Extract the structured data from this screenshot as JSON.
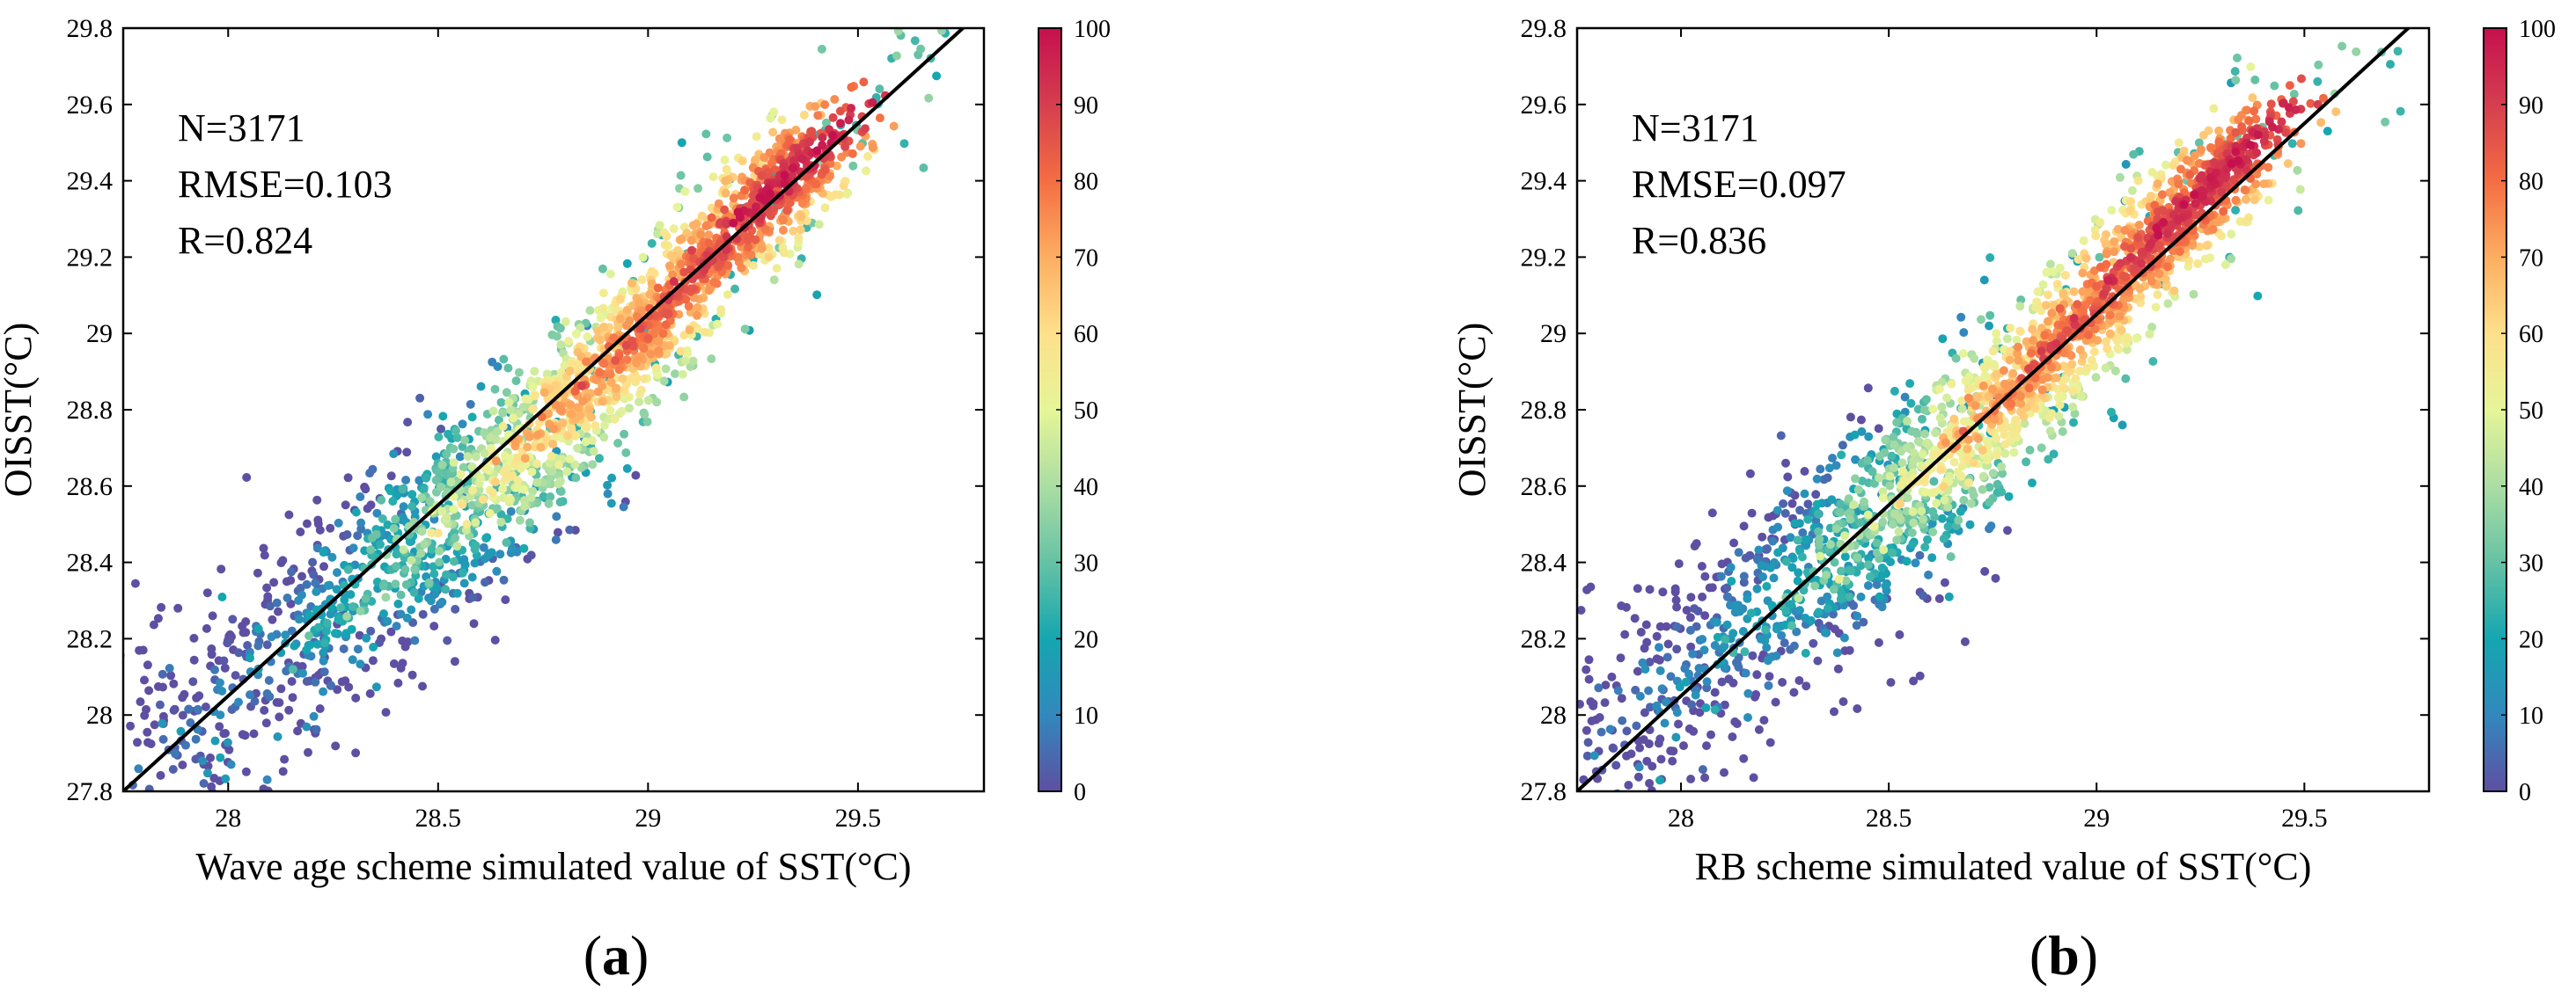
{
  "chart_data": [
    {
      "type": "scatter",
      "panel_label": "a",
      "xlabel": "Wave age scheme simulated value of SST(°C)",
      "ylabel": "OISST(°C)",
      "xlim": [
        27.75,
        29.8
      ],
      "ylim": [
        27.8,
        29.8
      ],
      "xticks": [
        28,
        28.5,
        29,
        29.5
      ],
      "xtick_labels": [
        "28",
        "28.5",
        "29",
        "29.5"
      ],
      "yticks": [
        27.8,
        28,
        28.2,
        28.4,
        28.6,
        28.8,
        29,
        29.2,
        29.4,
        29.6,
        29.8
      ],
      "ytick_labels": [
        "27.8",
        "28",
        "28.2",
        "28.4",
        "28.6",
        "28.8",
        "29",
        "29.2",
        "29.4",
        "29.6",
        "29.8"
      ],
      "annotations": [
        "N=3171",
        "RMSE=0.103",
        "R=0.824"
      ],
      "stats": {
        "N": 3171,
        "RMSE": 0.103,
        "R": 0.824
      },
      "reference_line": {
        "x": [
          27.75,
          29.8
        ],
        "y": [
          27.8,
          29.85
        ]
      },
      "density_clusters": [
        {
          "x": 29.35,
          "y": 29.43,
          "density": 97
        },
        {
          "x": 29.2,
          "y": 29.25,
          "density": 88
        },
        {
          "x": 29.0,
          "y": 29.02,
          "density": 82
        },
        {
          "x": 28.85,
          "y": 28.85,
          "density": 72
        },
        {
          "x": 28.7,
          "y": 28.68,
          "density": 58
        },
        {
          "x": 28.55,
          "y": 28.55,
          "density": 42
        },
        {
          "x": 28.45,
          "y": 28.42,
          "density": 30
        },
        {
          "x": 28.3,
          "y": 28.3,
          "density": 22
        },
        {
          "x": 28.1,
          "y": 28.15,
          "density": 12
        },
        {
          "x": 27.9,
          "y": 27.95,
          "density": 5
        }
      ],
      "colorbar": {
        "min": 0,
        "max": 100,
        "ticks": [
          0,
          10,
          20,
          30,
          40,
          50,
          60,
          70,
          80,
          90,
          100
        ],
        "tick_labels": [
          "0",
          "10",
          "20",
          "30",
          "40",
          "50",
          "60",
          "70",
          "80",
          "90",
          "100"
        ],
        "colors": [
          "#5e4fa2",
          "#3288bd",
          "#15a6b0",
          "#66c2a5",
          "#abdda4",
          "#e6f598",
          "#fee08b",
          "#fdae61",
          "#f46d43",
          "#d53e4f",
          "#c5104f"
        ]
      }
    },
    {
      "type": "scatter",
      "panel_label": "b",
      "xlabel": "RB scheme simulated value of SST(°C)",
      "ylabel": "OISST(°C)",
      "xlim": [
        27.75,
        29.8
      ],
      "ylim": [
        27.8,
        29.8
      ],
      "xticks": [
        28,
        28.5,
        29,
        29.5
      ],
      "xtick_labels": [
        "28",
        "28.5",
        "29",
        "29.5"
      ],
      "yticks": [
        27.8,
        28,
        28.2,
        28.4,
        28.6,
        28.8,
        29,
        29.2,
        29.4,
        29.6,
        29.8
      ],
      "ytick_labels": [
        "27.8",
        "28",
        "28.2",
        "28.4",
        "28.6",
        "28.8",
        "29",
        "29.2",
        "29.4",
        "29.6",
        "29.8"
      ],
      "annotations": [
        "N=3171",
        "RMSE=0.097",
        "R=0.836"
      ],
      "stats": {
        "N": 3171,
        "RMSE": 0.097,
        "R": 0.836
      },
      "reference_line": {
        "x": [
          27.75,
          29.8
        ],
        "y": [
          27.8,
          29.85
        ]
      },
      "density_clusters": [
        {
          "x": 29.3,
          "y": 29.42,
          "density": 97
        },
        {
          "x": 29.15,
          "y": 29.25,
          "density": 90
        },
        {
          "x": 28.95,
          "y": 29.02,
          "density": 84
        },
        {
          "x": 28.8,
          "y": 28.85,
          "density": 74
        },
        {
          "x": 28.65,
          "y": 28.68,
          "density": 58
        },
        {
          "x": 28.5,
          "y": 28.55,
          "density": 42
        },
        {
          "x": 28.4,
          "y": 28.42,
          "density": 30
        },
        {
          "x": 28.25,
          "y": 28.3,
          "density": 22
        },
        {
          "x": 28.05,
          "y": 28.15,
          "density": 12
        },
        {
          "x": 27.85,
          "y": 27.95,
          "density": 5
        }
      ],
      "colorbar": {
        "min": 0,
        "max": 100,
        "ticks": [
          0,
          10,
          20,
          30,
          40,
          50,
          60,
          70,
          80,
          90,
          100
        ],
        "tick_labels": [
          "0",
          "10",
          "20",
          "30",
          "40",
          "50",
          "60",
          "70",
          "80",
          "90",
          "100"
        ],
        "colors": [
          "#5e4fa2",
          "#3288bd",
          "#15a6b0",
          "#66c2a5",
          "#abdda4",
          "#e6f598",
          "#fee08b",
          "#fdae61",
          "#f46d43",
          "#d53e4f",
          "#c5104f"
        ]
      }
    }
  ]
}
